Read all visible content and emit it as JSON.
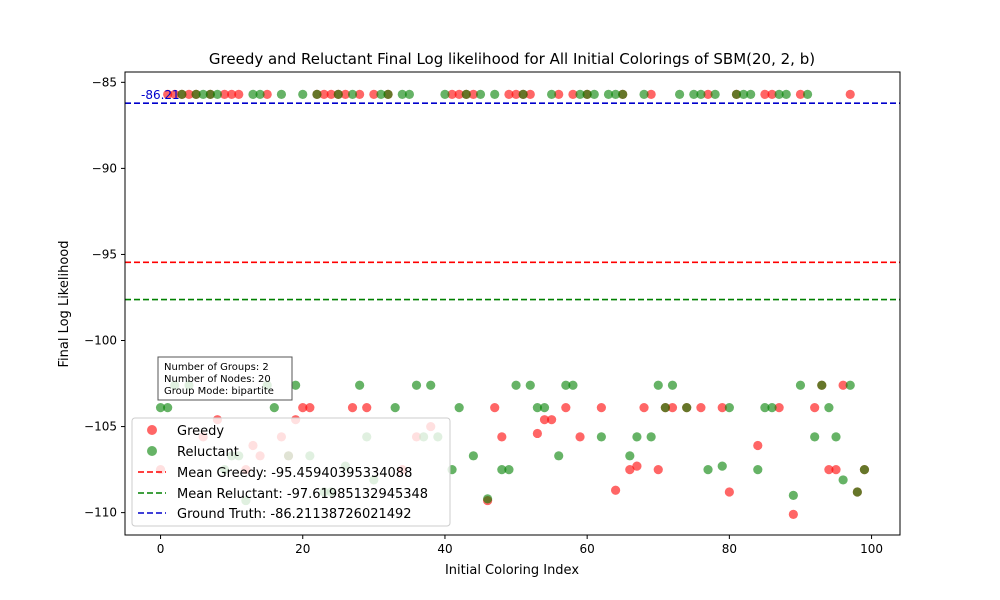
{
  "chart_data": {
    "type": "scatter",
    "title": "Greedy and Reluctant Final Log likelihood for All Initial Colorings of SBM(20, 2, b)",
    "xlabel": "Initial Coloring Index",
    "ylabel": "Final Log Likelihood",
    "xlim": [
      -5,
      104
    ],
    "ylim": [
      -111.3,
      -84.4
    ],
    "xticks": [
      0,
      20,
      40,
      60,
      80,
      100
    ],
    "yticks": [
      -110,
      -105,
      -100,
      -95,
      -90,
      -85
    ],
    "xtick_labels": [
      "0",
      "20",
      "40",
      "60",
      "80",
      "100"
    ],
    "ytick_labels": [
      "−110",
      "−105",
      "−100",
      "−95",
      "−90",
      "−85"
    ],
    "grid": false,
    "legend_position": "lower-left",
    "series": [
      {
        "name": "Greedy",
        "color": "#ff0000",
        "points": [
          [
            0,
            -107.5
          ],
          [
            1,
            -85.7
          ],
          [
            2,
            -85.7
          ],
          [
            3,
            -85.7
          ],
          [
            4,
            -85.7
          ],
          [
            5,
            -85.7
          ],
          [
            6,
            -105.6
          ],
          [
            7,
            -85.7
          ],
          [
            8,
            -104.6
          ],
          [
            9,
            -85.7
          ],
          [
            10,
            -85.7
          ],
          [
            11,
            -85.7
          ],
          [
            12,
            -107.5
          ],
          [
            13,
            -106.1
          ],
          [
            14,
            -106.7
          ],
          [
            15,
            -85.7
          ],
          [
            17,
            -105.6
          ],
          [
            18,
            -106.7
          ],
          [
            19,
            -104.6
          ],
          [
            20,
            -103.9
          ],
          [
            21,
            -103.9
          ],
          [
            22,
            -85.7
          ],
          [
            23,
            -85.7
          ],
          [
            24,
            -85.7
          ],
          [
            25,
            -85.7
          ],
          [
            26,
            -85.7
          ],
          [
            27,
            -103.9
          ],
          [
            28,
            -85.7
          ],
          [
            29,
            -103.9
          ],
          [
            30,
            -85.7
          ],
          [
            32,
            -85.7
          ],
          [
            34,
            -107.5
          ],
          [
            36,
            -105.6
          ],
          [
            38,
            -105.0
          ],
          [
            41,
            -85.7
          ],
          [
            42,
            -85.7
          ],
          [
            43,
            -85.7
          ],
          [
            44,
            -85.7
          ],
          [
            46,
            -109.3
          ],
          [
            47,
            -103.9
          ],
          [
            48,
            -105.6
          ],
          [
            49,
            -85.7
          ],
          [
            50,
            -85.7
          ],
          [
            51,
            -85.7
          ],
          [
            52,
            -85.7
          ],
          [
            53,
            -105.4
          ],
          [
            54,
            -104.6
          ],
          [
            55,
            -104.6
          ],
          [
            56,
            -85.7
          ],
          [
            57,
            -103.9
          ],
          [
            58,
            -85.7
          ],
          [
            59,
            -105.6
          ],
          [
            60,
            -85.7
          ],
          [
            62,
            -103.9
          ],
          [
            64,
            -108.7
          ],
          [
            65,
            -85.7
          ],
          [
            66,
            -107.5
          ],
          [
            67,
            -107.3
          ],
          [
            68,
            -103.9
          ],
          [
            69,
            -85.7
          ],
          [
            70,
            -107.5
          ],
          [
            71,
            -103.9
          ],
          [
            72,
            -103.9
          ],
          [
            74,
            -103.9
          ],
          [
            76,
            -103.9
          ],
          [
            77,
            -85.7
          ],
          [
            79,
            -103.9
          ],
          [
            80,
            -108.8
          ],
          [
            81,
            -85.7
          ],
          [
            84,
            -106.1
          ],
          [
            85,
            -85.7
          ],
          [
            86,
            -85.7
          ],
          [
            87,
            -103.9
          ],
          [
            89,
            -110.1
          ],
          [
            90,
            -85.7
          ],
          [
            92,
            -103.9
          ],
          [
            93,
            -102.6
          ],
          [
            94,
            -107.5
          ],
          [
            95,
            -107.5
          ],
          [
            96,
            -102.6
          ],
          [
            97,
            -85.7
          ],
          [
            98,
            -108.8
          ],
          [
            99,
            -107.5
          ]
        ]
      },
      {
        "name": "Reluctant",
        "color": "#008000",
        "points": [
          [
            0,
            -103.9
          ],
          [
            1,
            -103.9
          ],
          [
            2,
            -102.6
          ],
          [
            3,
            -85.7
          ],
          [
            4,
            -102.6
          ],
          [
            5,
            -85.7
          ],
          [
            6,
            -85.7
          ],
          [
            7,
            -85.7
          ],
          [
            8,
            -85.7
          ],
          [
            9,
            -107.5
          ],
          [
            10,
            -106.7
          ],
          [
            11,
            -106.7
          ],
          [
            12,
            -109.3
          ],
          [
            13,
            -85.7
          ],
          [
            14,
            -85.7
          ],
          [
            15,
            -102.6
          ],
          [
            16,
            -103.9
          ],
          [
            17,
            -85.7
          ],
          [
            18,
            -106.7
          ],
          [
            19,
            -102.6
          ],
          [
            20,
            -85.7
          ],
          [
            21,
            -106.7
          ],
          [
            22,
            -85.7
          ],
          [
            23,
            -108.8
          ],
          [
            24,
            -108.8
          ],
          [
            25,
            -85.7
          ],
          [
            26,
            -107.3
          ],
          [
            27,
            -85.7
          ],
          [
            28,
            -102.6
          ],
          [
            29,
            -105.6
          ],
          [
            30,
            -108.1
          ],
          [
            31,
            -85.7
          ],
          [
            32,
            -85.7
          ],
          [
            33,
            -103.9
          ],
          [
            34,
            -85.7
          ],
          [
            35,
            -85.7
          ],
          [
            36,
            -102.6
          ],
          [
            37,
            -105.6
          ],
          [
            38,
            -102.6
          ],
          [
            39,
            -105.6
          ],
          [
            40,
            -85.7
          ],
          [
            41,
            -107.5
          ],
          [
            42,
            -103.9
          ],
          [
            43,
            -85.7
          ],
          [
            44,
            -106.7
          ],
          [
            45,
            -85.7
          ],
          [
            46,
            -109.2
          ],
          [
            47,
            -85.7
          ],
          [
            48,
            -107.5
          ],
          [
            49,
            -107.5
          ],
          [
            50,
            -102.6
          ],
          [
            51,
            -85.7
          ],
          [
            52,
            -102.6
          ],
          [
            53,
            -103.9
          ],
          [
            54,
            -103.9
          ],
          [
            55,
            -85.7
          ],
          [
            56,
            -106.7
          ],
          [
            57,
            -102.6
          ],
          [
            58,
            -102.6
          ],
          [
            59,
            -85.7
          ],
          [
            60,
            -85.7
          ],
          [
            61,
            -85.7
          ],
          [
            62,
            -105.6
          ],
          [
            63,
            -85.7
          ],
          [
            64,
            -85.7
          ],
          [
            65,
            -85.7
          ],
          [
            66,
            -106.7
          ],
          [
            67,
            -105.6
          ],
          [
            68,
            -85.7
          ],
          [
            69,
            -105.6
          ],
          [
            70,
            -102.6
          ],
          [
            71,
            -103.9
          ],
          [
            72,
            -102.6
          ],
          [
            73,
            -85.7
          ],
          [
            74,
            -103.9
          ],
          [
            75,
            -85.7
          ],
          [
            76,
            -85.7
          ],
          [
            77,
            -107.5
          ],
          [
            78,
            -85.7
          ],
          [
            79,
            -107.3
          ],
          [
            80,
            -103.9
          ],
          [
            81,
            -85.7
          ],
          [
            82,
            -85.7
          ],
          [
            83,
            -85.7
          ],
          [
            84,
            -107.5
          ],
          [
            85,
            -103.9
          ],
          [
            86,
            -103.9
          ],
          [
            87,
            -85.7
          ],
          [
            88,
            -85.7
          ],
          [
            89,
            -109.0
          ],
          [
            90,
            -102.6
          ],
          [
            91,
            -85.7
          ],
          [
            92,
            -105.6
          ],
          [
            93,
            -102.6
          ],
          [
            94,
            -103.9
          ],
          [
            95,
            -105.6
          ],
          [
            96,
            -108.1
          ],
          [
            97,
            -102.6
          ],
          [
            98,
            -108.8
          ],
          [
            99,
            -107.5
          ]
        ]
      }
    ],
    "hlines": [
      {
        "name": "Mean Greedy: -95.45940395334088",
        "y": -95.45940395334088,
        "color": "#ff0000"
      },
      {
        "name": "Mean Reluctant: -97.61985132945348",
        "y": -97.61985132945348,
        "color": "#008000"
      },
      {
        "name": "Ground Truth: -86.21138726021492",
        "y": -86.21138726021492,
        "color": "#0000cc"
      }
    ],
    "annotation": {
      "text": "-86.21",
      "x": -3,
      "y": -86.0,
      "color": "#0000cc"
    },
    "info_box": {
      "lines": [
        "Number of Groups: 2",
        "Number of Nodes: 20",
        "Group Mode: bipartite"
      ]
    },
    "legend": {
      "greedy_label": "Greedy",
      "reluctant_label": "Reluctant",
      "mean_greedy_label": "Mean Greedy: -95.45940395334088",
      "mean_reluctant_label": "Mean Reluctant: -97.61985132945348",
      "ground_truth_label": "Ground Truth: -86.21138726021492"
    }
  }
}
